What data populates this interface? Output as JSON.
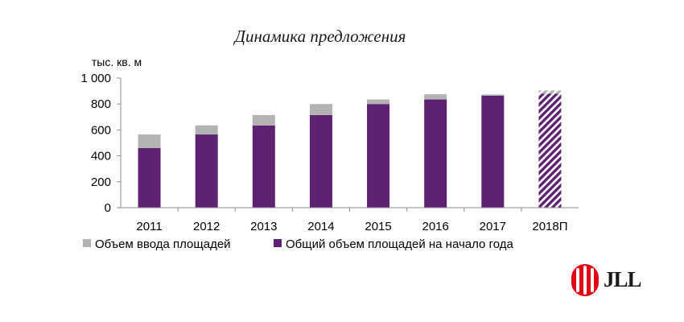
{
  "logo_text": "JLL",
  "chart_data": {
    "type": "bar",
    "stacked": true,
    "title": "Динамика предложения",
    "unit_label": "тыс. кв. м",
    "xlabel": "",
    "ylabel": "",
    "categories": [
      "2011",
      "2012",
      "2013",
      "2014",
      "2015",
      "2016",
      "2017",
      "2018П"
    ],
    "ylim": [
      0,
      1000
    ],
    "yticks": [
      0,
      200,
      400,
      600,
      800,
      1000
    ],
    "ytick_labels": [
      "0",
      "200",
      "400",
      "600",
      "800",
      "1 000"
    ],
    "series": [
      {
        "name": "Общий объем площадей на начало года",
        "color": "#5f2273",
        "values": [
          460,
          565,
          635,
          715,
          800,
          835,
          865,
          880
        ]
      },
      {
        "name": "Объем ввода площадей",
        "color": "#b3b3b3",
        "values": [
          105,
          70,
          80,
          85,
          35,
          40,
          8,
          25
        ]
      }
    ],
    "forecast_category": "2018П",
    "forecast_style": "hatched",
    "legend_position": "bottom",
    "legend_order": [
      "Объем ввода площадей",
      "Общий объем площадей на начало года"
    ],
    "grid": false
  }
}
